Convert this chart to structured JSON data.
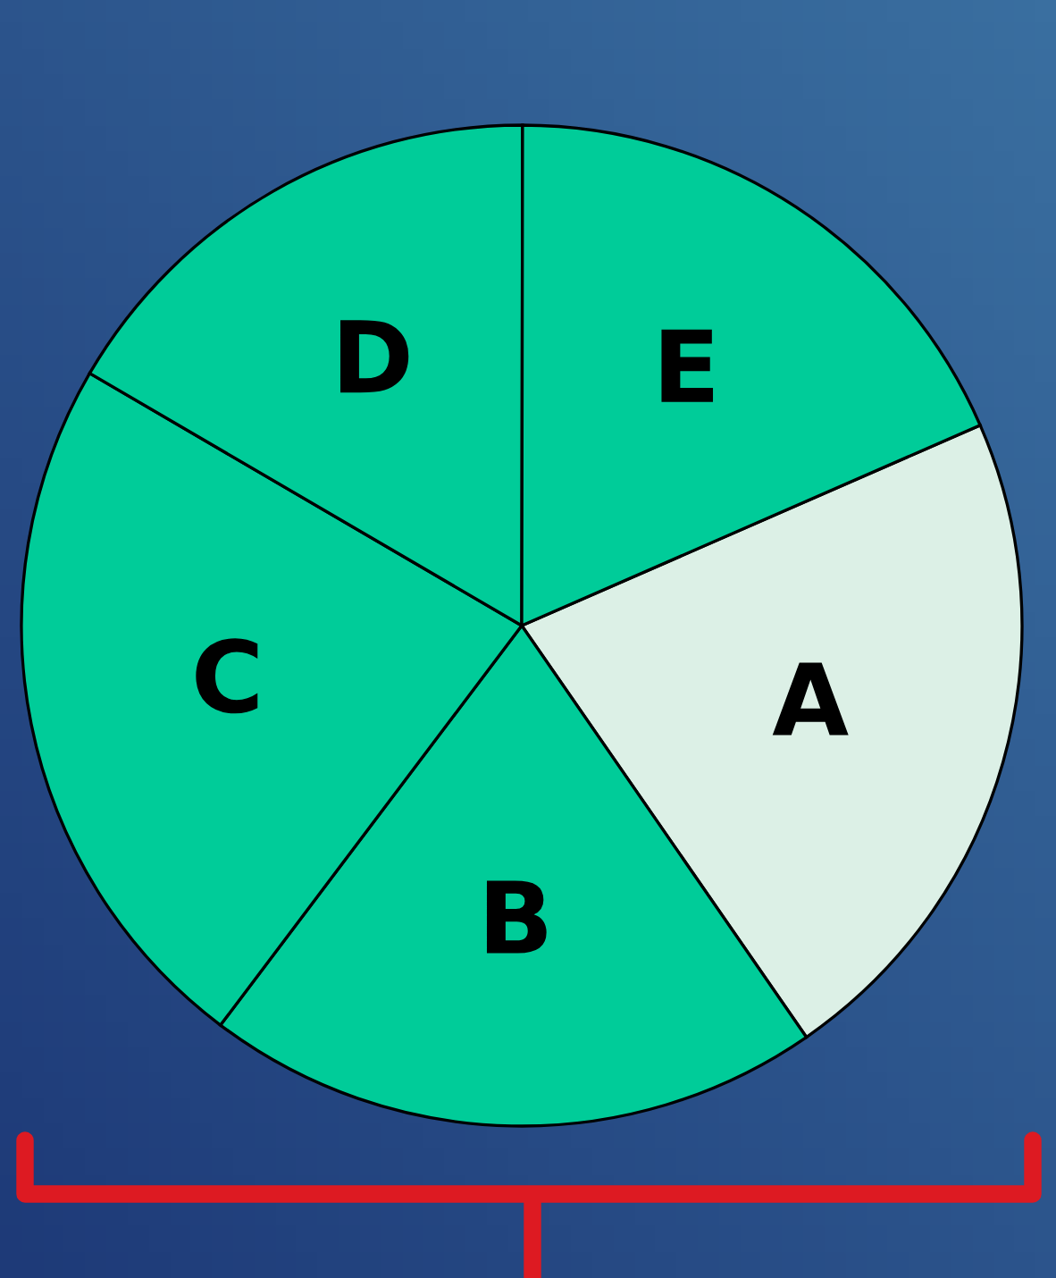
{
  "chart_data": {
    "type": "pie",
    "categories": [
      "A",
      "B",
      "C",
      "D",
      "E"
    ],
    "values": [
      21.9,
      19.9,
      23.1,
      16.6,
      18.4
    ],
    "colors": [
      "#dcf0e6",
      "#00cc99",
      "#00cc99",
      "#00cc99",
      "#00cc99"
    ],
    "legend": false
  }
}
